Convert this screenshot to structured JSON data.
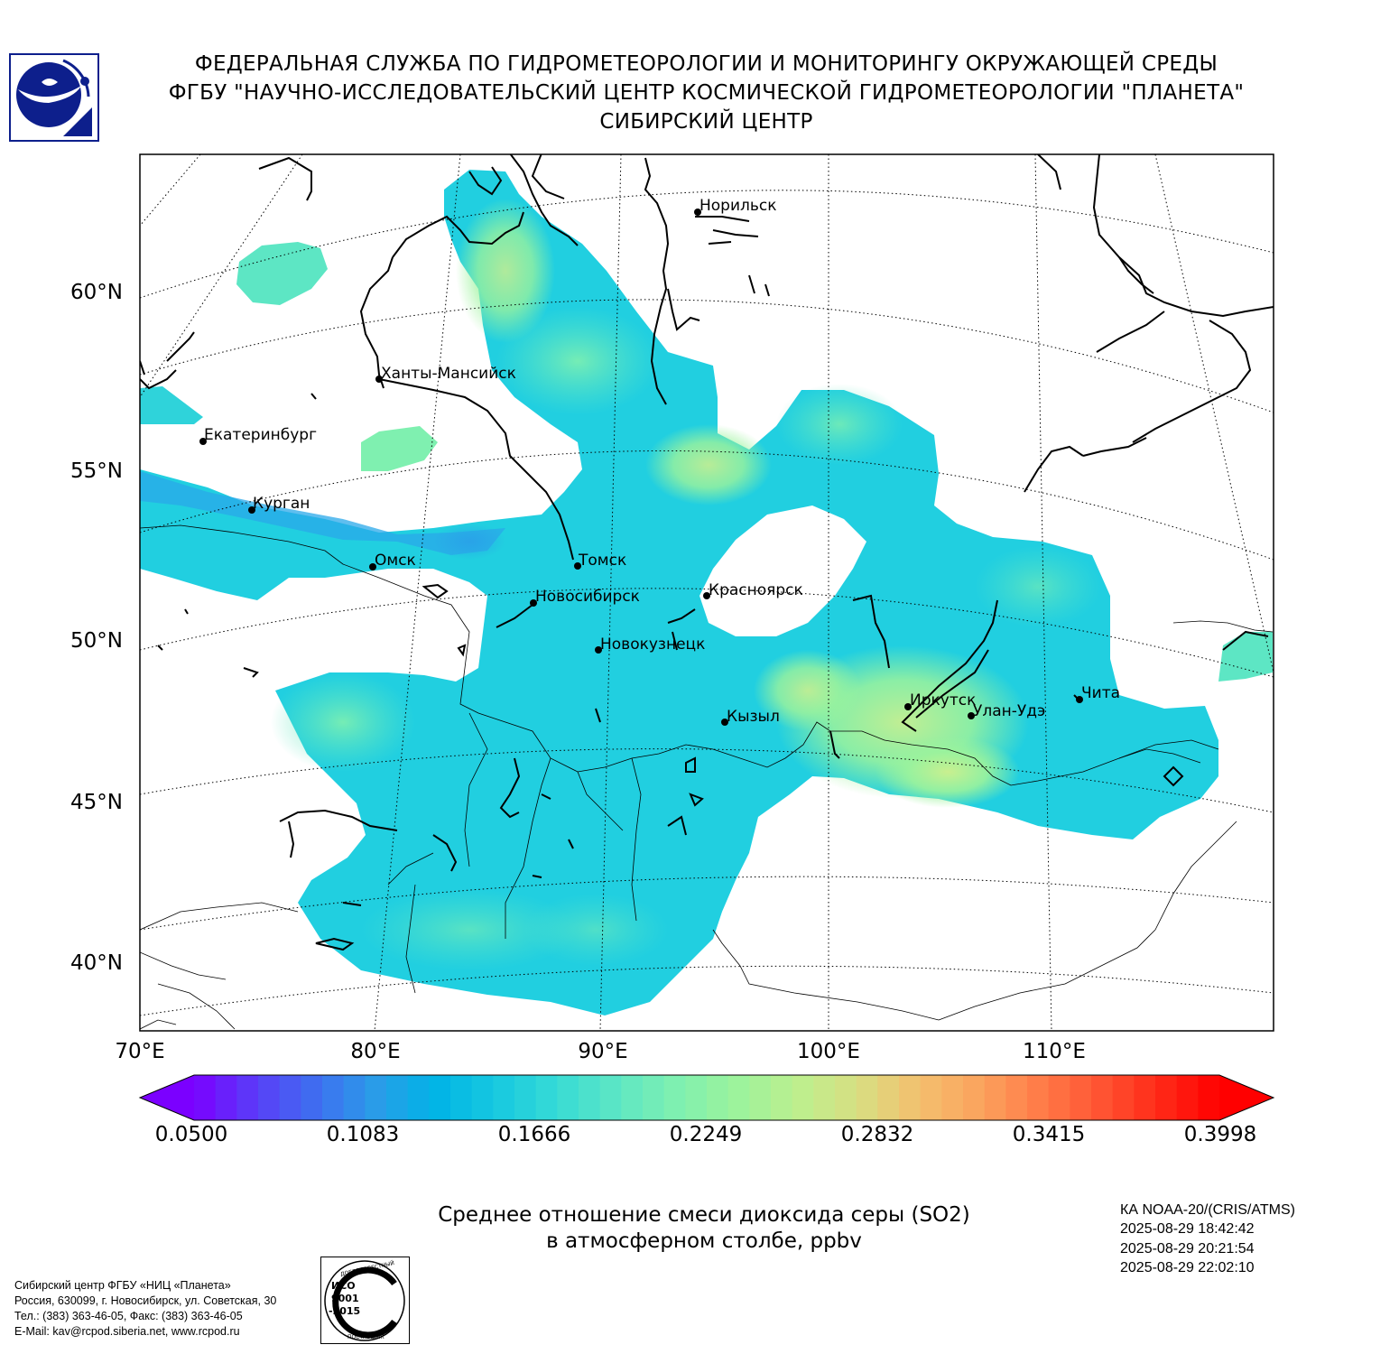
{
  "header": {
    "line1": "ФЕДЕРАЛЬНАЯ СЛУЖБА ПО ГИДРОМЕТЕОРОЛОГИИ И МОНИТОРИНГУ ОКРУЖАЮЩЕЙ СРЕДЫ",
    "line2": "ФГБУ \"НАУЧНО-ИССЛЕДОВАТЕЛЬСКИЙ ЦЕНТР КОСМИЧЕСКОЙ ГИДРОМЕТЕОРОЛОГИИ \"ПЛАНЕТА\"",
    "line3": "СИБИРСКИЙ ЦЕНТР"
  },
  "map": {
    "lat_labels": [
      "60°N",
      "55°N",
      "50°N",
      "45°N",
      "40°N"
    ],
    "lon_labels": [
      "70°E",
      "80°E",
      "90°E",
      "100°E",
      "110°E"
    ],
    "cities": [
      "Норильск",
      "Ханты-Мансийск",
      "Екатеринбург",
      "Курган",
      "Омск",
      "Томск",
      "Новосибирск",
      "Красноярск",
      "Новокузнецк",
      "Кызыл",
      "Иркутск",
      "Улан-Удэ",
      "Чита"
    ],
    "field_colors": {
      "base": "#1fcde0",
      "mid": "#5de6c4",
      "high": "#9cf39c",
      "peak": "#c9ef8f",
      "low": "#2a9ce8"
    }
  },
  "colorbar": {
    "ticks": [
      "0.0500",
      "0.1083",
      "0.1666",
      "0.2249",
      "0.2832",
      "0.3415",
      "0.3998"
    ],
    "colors": [
      "#7b00ff",
      "#5a3cf8",
      "#3f6ef0",
      "#2a9ce8",
      "#00b4e6",
      "#17c8e0",
      "#36dbd6",
      "#5de6c4",
      "#7ff0b0",
      "#9cf39c",
      "#bcef8e",
      "#d8df82",
      "#f3c06e",
      "#fba45e",
      "#ff7d49",
      "#ff5533",
      "#ff2a18",
      "#ff0000"
    ]
  },
  "caption": {
    "line1": "Среднее отношение смеси диоксида серы (SO2)",
    "line2": "в атмосферном столбе, ppbv"
  },
  "satellite": {
    "name": "КА NOAA-20/(CRIS/ATMS)",
    "times": [
      "2025-08-29 18:42:42",
      "2025-08-29 20:21:54",
      "2025-08-29 22:02:10"
    ]
  },
  "footer": {
    "line1": "Сибирский центр ФГБУ «НИЦ «Планета»",
    "line2": "Россия, 630099, г. Новосибирск, ул. Советская, 30",
    "line3": "Тел.: (383) 363-46-05, Факс: (383) 363-46-05",
    "line4": "E-Mail: kav@rcpod.siberia.net, www.rcpod.ru"
  },
  "certificate": {
    "top": "ДОБРОСОВЕСТНЫЙ",
    "mid": "ИСО 9001 -2015",
    "bottom": "ПОСТАВЩИК"
  }
}
